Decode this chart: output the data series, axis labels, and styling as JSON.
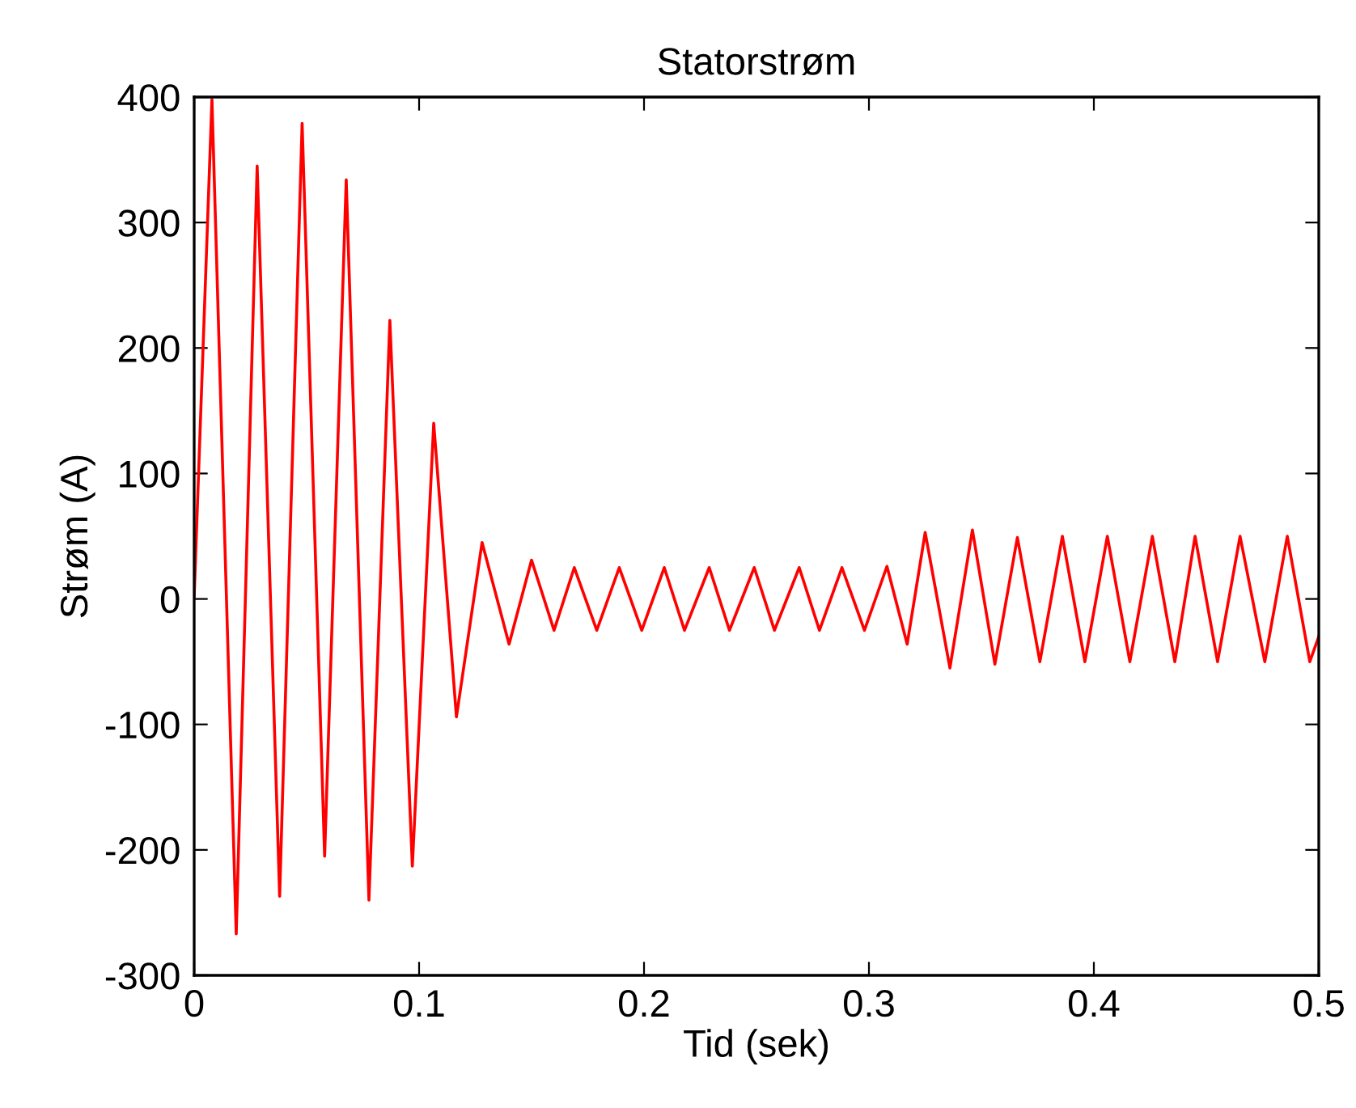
{
  "chart_data": {
    "type": "line",
    "title": "Statorstrøm",
    "xlabel": "Tid (sek)",
    "ylabel": "Strøm (A)",
    "xlim": [
      0,
      0.5
    ],
    "ylim": [
      -300,
      400
    ],
    "xticks": [
      0,
      0.1,
      0.2,
      0.3,
      0.4,
      0.5
    ],
    "yticks": [
      -300,
      -200,
      -100,
      0,
      100,
      200,
      300,
      400
    ],
    "marker": "none",
    "line_style": "solid",
    "series": [
      {
        "color": "#ff0000",
        "x": [
          0,
          0.0079,
          0.0187,
          0.028,
          0.038,
          0.048,
          0.058,
          0.0676,
          0.0777,
          0.087,
          0.097,
          0.1065,
          0.1166,
          0.128,
          0.14,
          0.15,
          0.16,
          0.169,
          0.179,
          0.189,
          0.199,
          0.209,
          0.218,
          0.229,
          0.238,
          0.249,
          0.258,
          0.269,
          0.278,
          0.288,
          0.298,
          0.308,
          0.317,
          0.325,
          0.336,
          0.346,
          0.356,
          0.366,
          0.376,
          0.386,
          0.396,
          0.406,
          0.416,
          0.426,
          0.436,
          0.445,
          0.455,
          0.465,
          0.476,
          0.486,
          0.496,
          0.5
        ],
        "values": [
          2,
          398,
          -267,
          345,
          -237,
          379,
          -205,
          334,
          -240,
          222,
          -213,
          140,
          -94,
          45,
          -36,
          31,
          -25,
          25,
          -25,
          25,
          -25,
          25,
          -25,
          25,
          -25,
          25,
          -25,
          25,
          -25,
          25,
          -25,
          26,
          -36,
          53,
          -55,
          55,
          -52,
          49,
          -50,
          50,
          -50,
          50,
          -50,
          50,
          -50,
          50,
          -50,
          50,
          -50,
          50,
          -50,
          -30
        ]
      }
    ]
  }
}
